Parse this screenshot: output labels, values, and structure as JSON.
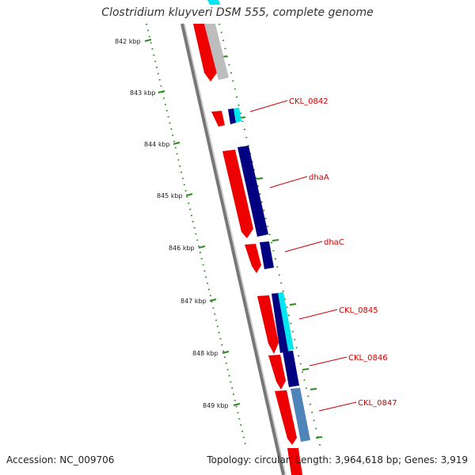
{
  "title": "Clostridium kluyveri DSM 555, complete genome",
  "footer": {
    "accession": "Accession: NC_009706",
    "summary": "Topology: circular; Length: 3,964,618 bp; Genes: 3,919"
  },
  "ruler": {
    "tick_labels": [
      "842 kbp",
      "843 kbp",
      "844 kbp",
      "845 kbp",
      "846 kbp",
      "847 kbp",
      "848 kbp",
      "849 kbp"
    ]
  },
  "gene_labels": [
    "CKL_0842",
    "dhaA",
    "dhaC",
    "CKL_0845",
    "CKL_0846",
    "CKL_0847"
  ],
  "colors": {
    "ruler": "#2a8a1e",
    "backbone": "#777777",
    "forward_gene": "#ee0000",
    "navy_gene": "#000080",
    "cyan_gene": "#00e5ee",
    "steel_gene": "#4f84b8",
    "gray_gene": "#bdbdbd",
    "label": "#cc0000"
  }
}
